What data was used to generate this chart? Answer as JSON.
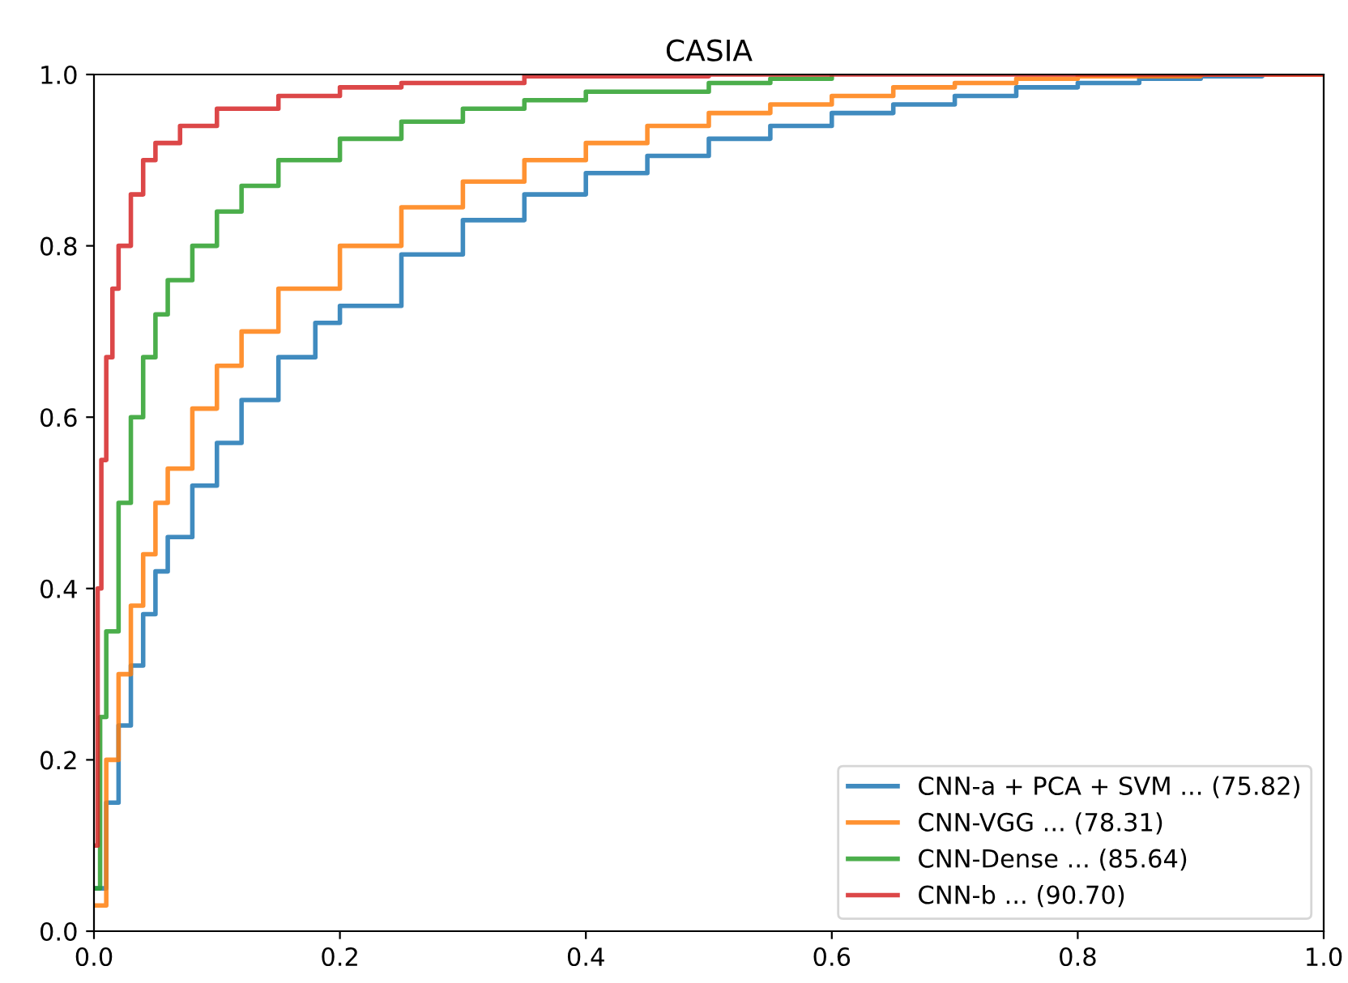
{
  "chart_data": {
    "type": "step",
    "title": "CASIA",
    "xlim": [
      0,
      1
    ],
    "ylim": [
      0,
      1
    ],
    "xticks": [
      {
        "value": 0,
        "label": "0.0"
      },
      0.2,
      0.4,
      0.6,
      0.8,
      {
        "value": 1,
        "label": "1.0"
      }
    ],
    "yticks": [
      {
        "value": 0,
        "label": "0.0"
      },
      0.2,
      0.4,
      0.6,
      0.8,
      {
        "value": 1,
        "label": "1.0"
      }
    ],
    "grid": false,
    "legend": "bottom right",
    "series": [
      {
        "name": "CNN-a + PCA + SVM ... (75.82)",
        "color": "#1f77b4",
        "x": [
          0,
          0.01,
          0.02,
          0.03,
          0.04,
          0.05,
          0.06,
          0.08,
          0.1,
          0.12,
          0.15,
          0.18,
          0.2,
          0.25,
          0.3,
          0.35,
          0.4,
          0.45,
          0.5,
          0.55,
          0.6,
          0.65,
          0.7,
          0.75,
          0.8,
          0.85,
          0.9,
          0.95
        ],
        "values": [
          0.05,
          0.15,
          0.24,
          0.31,
          0.37,
          0.42,
          0.46,
          0.52,
          0.57,
          0.62,
          0.67,
          0.71,
          0.73,
          0.79,
          0.83,
          0.86,
          0.885,
          0.905,
          0.925,
          0.94,
          0.955,
          0.965,
          0.975,
          0.985,
          0.99,
          0.995,
          0.998,
          1.0
        ]
      },
      {
        "name": "CNN-VGG ... (78.31)",
        "color": "#ff7f0e",
        "x": [
          0,
          0.01,
          0.02,
          0.03,
          0.04,
          0.05,
          0.06,
          0.08,
          0.1,
          0.12,
          0.15,
          0.2,
          0.25,
          0.3,
          0.35,
          0.4,
          0.45,
          0.5,
          0.55,
          0.6,
          0.65,
          0.7,
          0.75,
          0.8,
          0.9,
          1.0
        ],
        "values": [
          0.03,
          0.2,
          0.3,
          0.38,
          0.44,
          0.5,
          0.54,
          0.61,
          0.66,
          0.7,
          0.75,
          0.8,
          0.845,
          0.875,
          0.9,
          0.92,
          0.94,
          0.955,
          0.965,
          0.975,
          0.985,
          0.99,
          0.995,
          0.998,
          1.0,
          1.0
        ]
      },
      {
        "name": "CNN-Dense ... (85.64)",
        "color": "#2ca02c",
        "x": [
          0,
          0.005,
          0.01,
          0.02,
          0.03,
          0.04,
          0.05,
          0.06,
          0.08,
          0.1,
          0.12,
          0.15,
          0.2,
          0.25,
          0.3,
          0.35,
          0.4,
          0.5,
          0.55,
          0.6
        ],
        "values": [
          0.05,
          0.25,
          0.35,
          0.5,
          0.6,
          0.67,
          0.72,
          0.76,
          0.8,
          0.84,
          0.87,
          0.9,
          0.925,
          0.945,
          0.96,
          0.97,
          0.98,
          0.99,
          0.995,
          1.0
        ]
      },
      {
        "name": "CNN-b ... (90.70)",
        "color": "#d62728",
        "x": [
          0,
          0.003,
          0.006,
          0.01,
          0.015,
          0.02,
          0.03,
          0.04,
          0.05,
          0.07,
          0.1,
          0.15,
          0.2,
          0.25,
          0.35,
          0.5,
          1.0
        ],
        "values": [
          0.1,
          0.4,
          0.55,
          0.67,
          0.75,
          0.8,
          0.86,
          0.9,
          0.92,
          0.94,
          0.96,
          0.975,
          0.985,
          0.99,
          0.998,
          1.0,
          1.0
        ]
      }
    ]
  }
}
